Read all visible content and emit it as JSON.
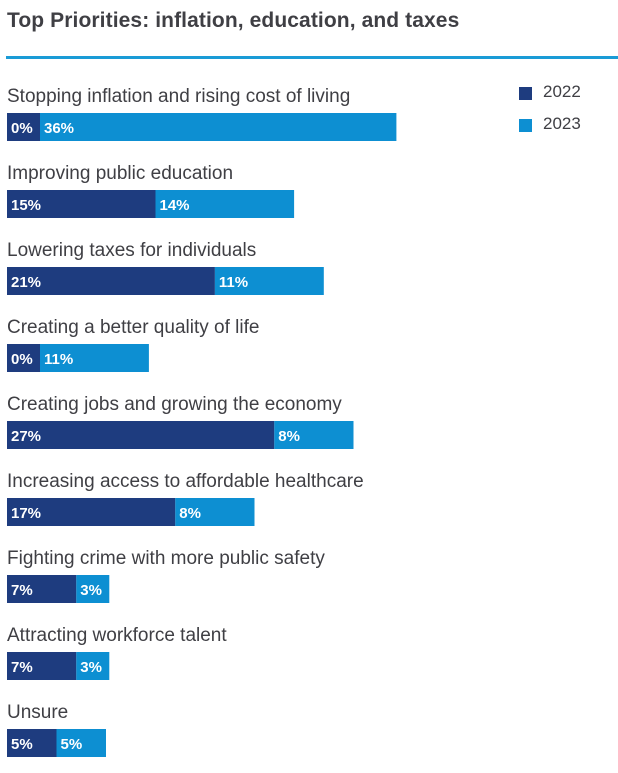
{
  "chart_data": {
    "type": "bar",
    "orientation": "horizontal",
    "stacked": true,
    "title": "Top Priorities: inflation, education, and taxes",
    "categories": [
      "Stopping inflation and rising cost of living",
      "Improving public education",
      "Lowering taxes for individuals",
      "Creating a better quality of life",
      "Creating jobs and growing the economy",
      "Increasing access to affordable healthcare",
      "Fighting crime with more public safety",
      "Attracting workforce talent",
      "Unsure"
    ],
    "series": [
      {
        "name": "2022",
        "color": "#1e3c7f",
        "values": [
          0,
          15,
          21,
          0,
          27,
          17,
          7,
          7,
          5
        ]
      },
      {
        "name": "2023",
        "color": "#0d8fd2",
        "values": [
          36,
          14,
          11,
          11,
          8,
          8,
          3,
          3,
          5
        ]
      }
    ],
    "value_suffix": "%",
    "legend": "top-right",
    "xlabel": "",
    "ylabel": ""
  }
}
